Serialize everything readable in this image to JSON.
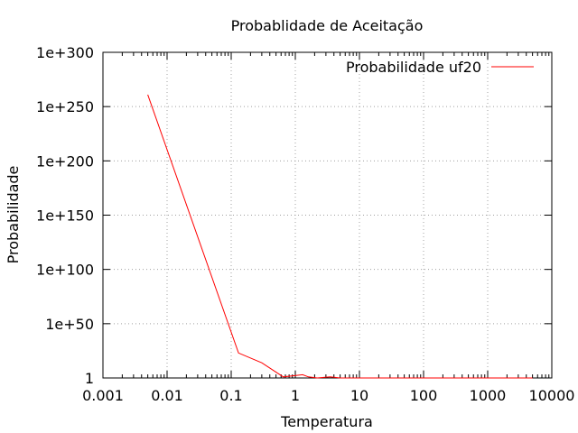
{
  "chart_data": {
    "type": "line",
    "title": "Probablidade de Aceitação",
    "xlabel": "Temperatura",
    "ylabel": "Probabilidade",
    "x_scale": "log",
    "y_scale": "log",
    "xlim": [
      0.001,
      10000
    ],
    "ylim": [
      1,
      1e+300
    ],
    "x_ticks": [
      0.001,
      0.01,
      0.1,
      1,
      10,
      100,
      1000,
      10000
    ],
    "x_tick_labels": [
      "0.001",
      "0.01",
      "0.1",
      "1",
      "10",
      "100",
      "1000",
      "10000"
    ],
    "y_ticks": [
      1,
      1e+50,
      1e+100,
      1e+150,
      1e+200,
      1e+250,
      1e+300
    ],
    "y_tick_labels": [
      "1",
      "1e+50",
      "1e+100",
      "1e+150",
      "1e+200",
      "1e+250",
      "1e+300"
    ],
    "grid": true,
    "legend_position": "top-right",
    "series": [
      {
        "name": "Probabilidade uf20",
        "color": "#ff0000",
        "x": [
          0.005,
          0.13,
          0.3,
          0.65,
          1.3,
          1.6,
          2.2,
          3.5,
          5,
          10,
          50,
          5000
        ],
        "y": [
          1e+261,
          1e+23,
          100000000000000.0,
          10.0,
          1000.0,
          10.0,
          1.0,
          10.0,
          1.0,
          1.0,
          1.0,
          1.0
        ]
      }
    ]
  }
}
